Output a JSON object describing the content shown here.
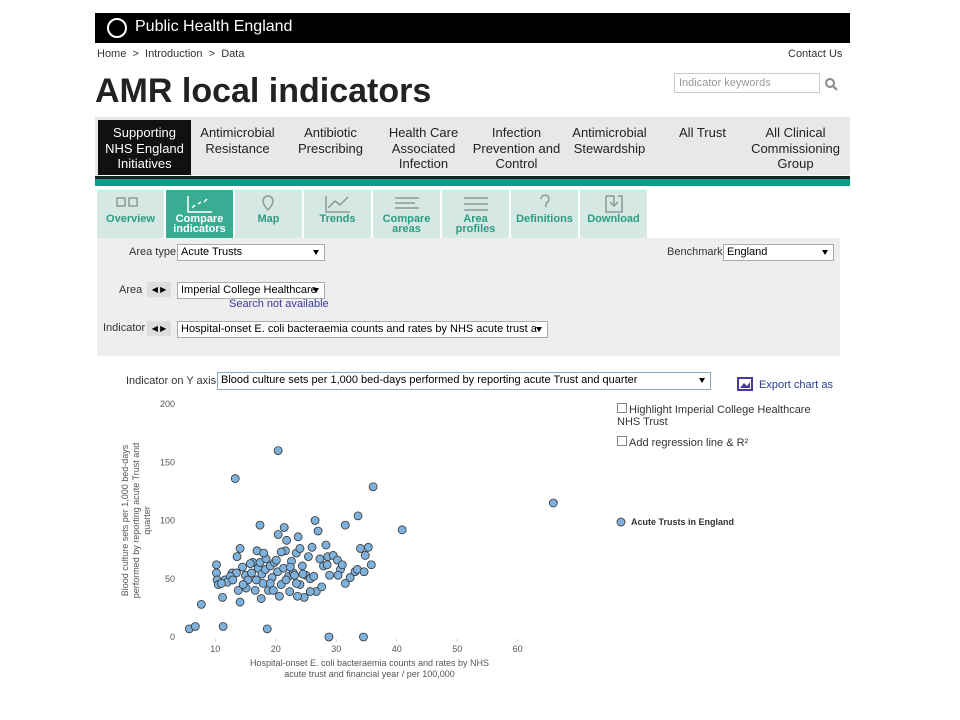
{
  "header": {
    "brand": "Public Health England"
  },
  "breadcrumb": {
    "items": [
      "Home",
      "Introduction",
      "Data"
    ],
    "separator": ">",
    "contact": "Contact Us"
  },
  "search": {
    "placeholder": "Indicator keywords"
  },
  "page": {
    "title": "AMR local indicators"
  },
  "nav": {
    "items": [
      "Supporting NHS England Initiatives",
      "Antimicrobial Resistance",
      "Antibiotic Prescribing",
      "Health Care Associated Infection",
      "Infection Prevention and Control",
      "Antimicrobial Stewardship",
      "All Trust",
      "All Clinical Commissioning Group"
    ],
    "active": 0
  },
  "tabs": {
    "items": [
      "Overview",
      "Compare indicators",
      "Map",
      "Trends",
      "Compare areas",
      "Area profiles",
      "Definitions",
      "Download"
    ],
    "active": 1
  },
  "filters": {
    "area_type": {
      "label": "Area type",
      "value": "Acute Trusts"
    },
    "benchmark": {
      "label": "Benchmark",
      "value": "England"
    },
    "area": {
      "label": "Area",
      "value": "Imperial College Healthcare",
      "note": "Search not available"
    },
    "indicator": {
      "label": "Indicator",
      "value": "Hospital-onset E. coli bacteraemia counts and rates by NHS acute trust a"
    }
  },
  "y_selector": {
    "label": "Indicator on Y axis",
    "value": "Blood culture sets per 1,000 bed-days performed by reporting acute Trust and quarter"
  },
  "export": "Export chart as",
  "options": [
    "Highlight Imperial College Healthcare NHS Trust",
    "Add regression line & R²"
  ],
  "chart_data": {
    "type": "scatter",
    "x_label": "Hospital-onset E. coli bacteraemia counts and rates by NHS acute trust and financial year / per 100,000",
    "y_label": "Blood culture sets per 1,000 bed-days performed by reporting acute Trust and quarter",
    "xlim": [
      4.5,
      66.5
    ],
    "ylim": [
      0,
      200
    ],
    "xticks": [
      10,
      20,
      30,
      40,
      50,
      60
    ],
    "yticks": [
      0,
      50,
      100,
      150,
      200
    ],
    "grid": false,
    "legend": "right",
    "series": [
      {
        "name": "Acute Trusts in England",
        "color": "#7eb1dc",
        "x": [
          5.7,
          6.7,
          7.7,
          11.3,
          18.6,
          28.8,
          34.5,
          13.3,
          20.4,
          36.1,
          65.9,
          33.6,
          40.9,
          31.5,
          26.5,
          17.4,
          21.4,
          10.2,
          10.2,
          10.3,
          10.5,
          11.2,
          11.6,
          12.8,
          13.6,
          14.1,
          13.8,
          14.1,
          14.5,
          15.0,
          15.4,
          16.0,
          16.2,
          16.8,
          17.1,
          17.4,
          17.7,
          17.9,
          18.3,
          18.4,
          18.8,
          19.1,
          19.4,
          19.8,
          20.1,
          20.3,
          20.6,
          20.9,
          21.3,
          21.6,
          21.8,
          22.1,
          22.3,
          22.6,
          22.9,
          23.4,
          23.7,
          24.0,
          24.4,
          24.7,
          25.0,
          25.4,
          25.7,
          26.0,
          26.3,
          26.7,
          27.0,
          27.3,
          27.6,
          27.9,
          28.3,
          28.6,
          28.9,
          29.5,
          30.2,
          30.7,
          31.0,
          31.5,
          33.1,
          33.5,
          34.0,
          34.8,
          35.3,
          35.8,
          34.6,
          32.3,
          28.5,
          23.1,
          16.9,
          15.8,
          15.1,
          13.5,
          12.5,
          12.0,
          11.0,
          19.1,
          19.6,
          21.7,
          23.4,
          25.7,
          23.6,
          24.5,
          17.6,
          16.6,
          20.4,
          20.9,
          18.0,
          12.9,
          14.6,
          22.4,
          24.0,
          30.3
        ],
        "values": [
          7,
          9,
          28,
          9,
          7,
          0,
          0,
          136,
          160,
          129,
          115,
          104,
          92,
          96,
          100,
          96,
          94,
          62,
          55,
          49,
          45,
          34,
          49,
          55,
          69,
          76,
          40,
          30,
          60,
          53,
          49,
          55,
          64,
          49,
          59,
          64,
          54,
          46,
          58,
          67,
          40,
          61,
          51,
          64,
          66,
          56,
          35,
          45,
          59,
          74,
          83,
          52,
          39,
          65,
          55,
          72,
          86,
          45,
          61,
          34,
          53,
          69,
          50,
          77,
          52,
          39,
          91,
          67,
          43,
          61,
          79,
          69,
          53,
          70,
          66,
          58,
          62,
          46,
          56,
          58,
          76,
          70,
          77,
          62,
          56,
          51,
          62,
          53,
          74,
          63,
          42,
          55,
          52,
          47,
          46,
          46,
          40,
          49,
          46,
          39,
          35,
          54,
          33,
          40,
          88,
          73,
          72,
          49,
          45,
          60,
          76,
          53
        ]
      }
    ]
  }
}
